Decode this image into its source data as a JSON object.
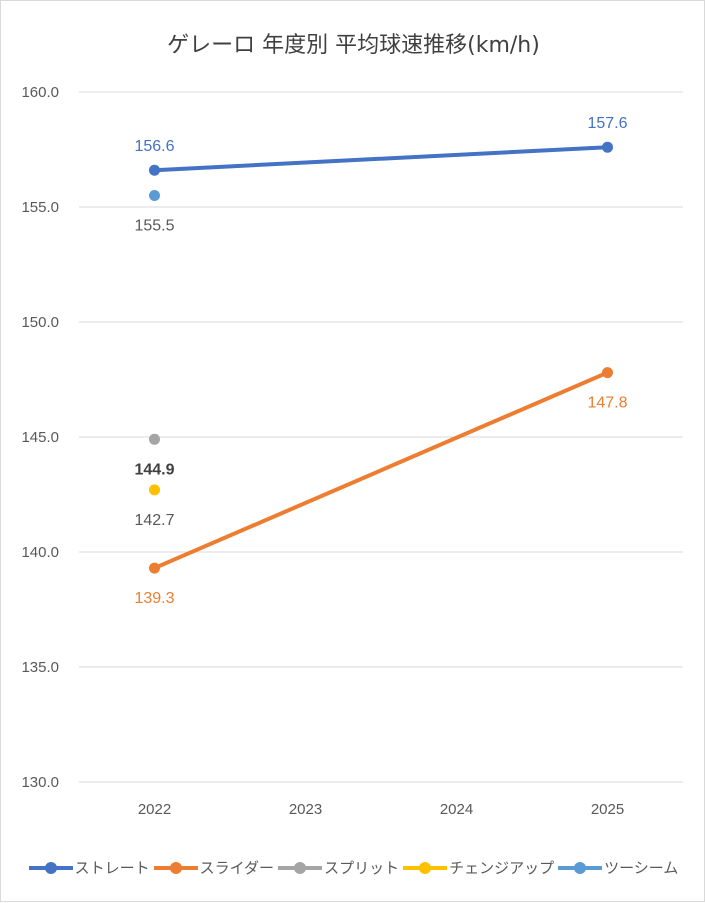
{
  "chart_data": {
    "type": "line",
    "title": "ゲレーロ 年度別 平均球速推移(km/h)",
    "categories": [
      "2022",
      "2023",
      "2024",
      "2025"
    ],
    "ylim": [
      130,
      160
    ],
    "yticks": [
      "130.0",
      "135.0",
      "140.0",
      "145.0",
      "150.0",
      "155.0",
      "160.0"
    ],
    "grid": true,
    "legend_position": "bottom",
    "series": [
      {
        "name": "ストレート",
        "color": "#4472c4",
        "values": [
          156.6,
          null,
          null,
          157.6
        ],
        "labels": [
          "156.6",
          "",
          "",
          "157.6"
        ],
        "label_pos": [
          "above",
          "",
          "",
          "above"
        ],
        "connect": true
      },
      {
        "name": "スライダー",
        "color": "#ed7d31",
        "values": [
          139.3,
          null,
          null,
          147.8
        ],
        "labels": [
          "139.3",
          "",
          "",
          "147.8"
        ],
        "label_pos": [
          "below",
          "",
          "",
          "below"
        ],
        "connect": true
      },
      {
        "name": "スプリット",
        "color": "#a5a5a5",
        "values": [
          144.9,
          null,
          null,
          null
        ],
        "labels": [
          "144.9",
          "",
          "",
          ""
        ],
        "label_pos": [
          "below",
          "",
          "",
          ""
        ],
        "connect": false
      },
      {
        "name": "チェンジアップ",
        "color": "#ffc000",
        "values": [
          142.7,
          null,
          null,
          null
        ],
        "labels": [
          "142.7",
          "",
          "",
          ""
        ],
        "label_pos": [
          "below",
          "",
          "",
          ""
        ],
        "connect": false
      },
      {
        "name": "ツーシーム",
        "color": "#5b9bd5",
        "values": [
          155.5,
          null,
          null,
          null
        ],
        "labels": [
          "155.5",
          "",
          "",
          ""
        ],
        "label_pos": [
          "below",
          "",
          "",
          ""
        ],
        "connect": false
      }
    ]
  }
}
